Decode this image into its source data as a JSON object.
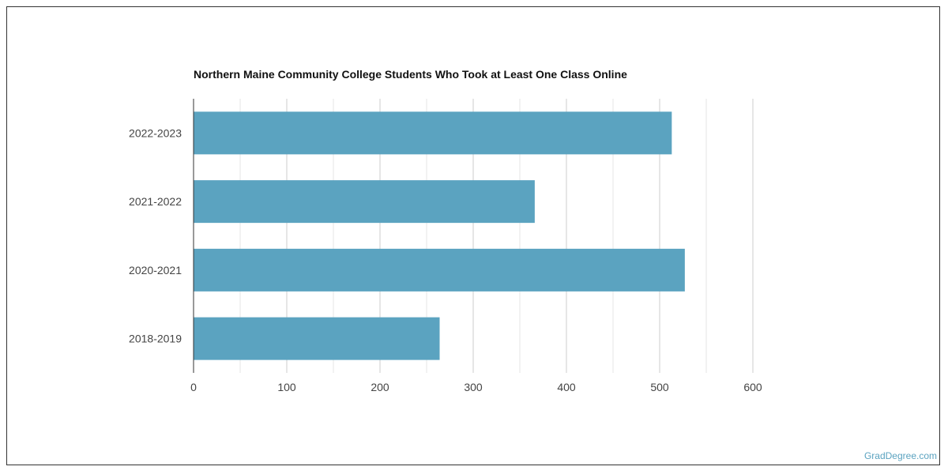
{
  "chart_data": {
    "type": "bar",
    "orientation": "horizontal",
    "title": "Northern Maine Community College Students Who Took at Least One Class Online",
    "categories": [
      "2022-2023",
      "2021-2022",
      "2020-2021",
      "2018-2019"
    ],
    "values": [
      513,
      366,
      527,
      264
    ],
    "xlim": [
      0,
      600
    ],
    "xticks": [
      0,
      100,
      200,
      300,
      400,
      500,
      600
    ],
    "xlabel": "",
    "ylabel": "",
    "grid": true,
    "bar_color": "#5ba3c0"
  },
  "credit": "GradDegree.com"
}
